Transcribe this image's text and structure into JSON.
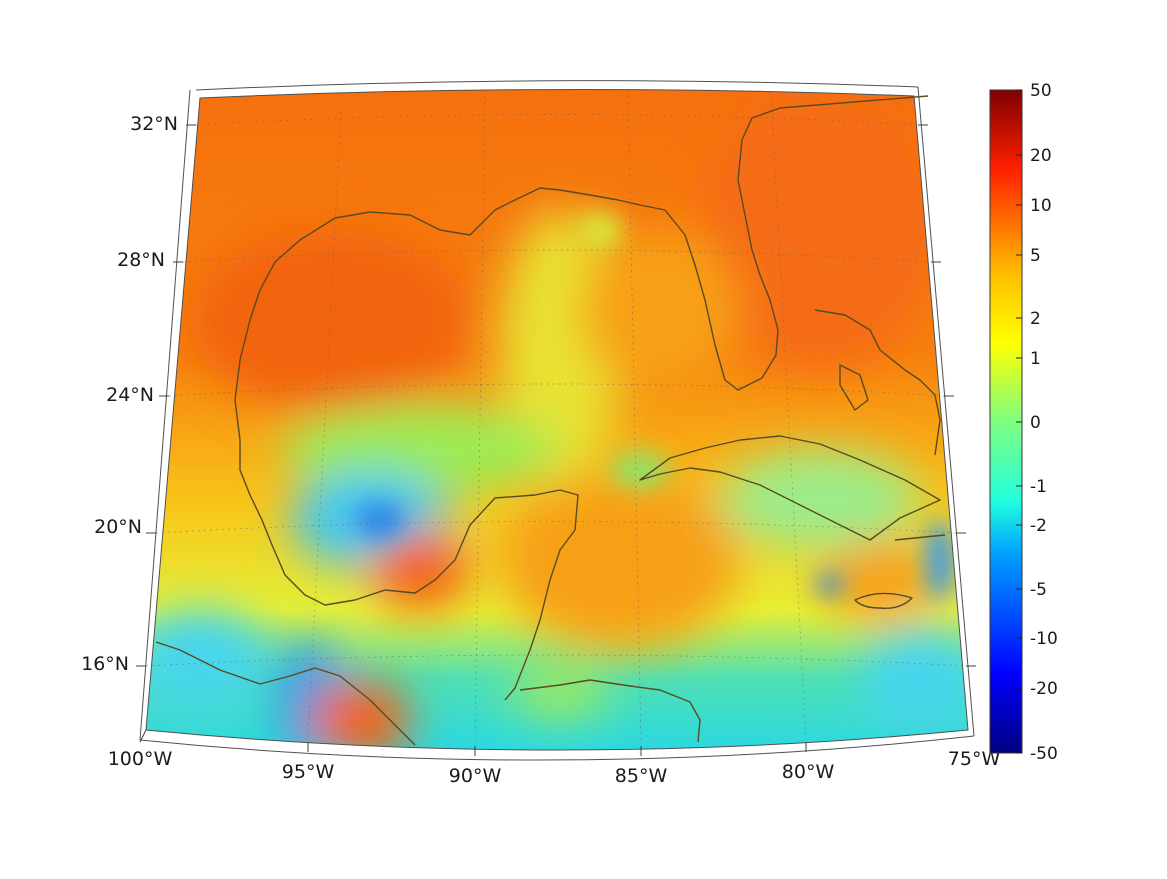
{
  "map": {
    "region": "Gulf of Mexico and Caribbean",
    "projection": "conic",
    "lon_range": [
      -100,
      -75
    ],
    "lat_range": [
      14,
      33
    ],
    "lon_ticks": [
      "100°W",
      "95°W",
      "90°W",
      "85°W",
      "80°W",
      "75°W"
    ],
    "lat_ticks": [
      "16°N",
      "20°N",
      "24°N",
      "28°N",
      "32°N"
    ],
    "coastline_color": "#5a4a22",
    "gridlines": true
  },
  "colorbar": {
    "colormap": "jet",
    "scale": "symmetric-log",
    "ticks": [
      "50",
      "20",
      "10",
      "5",
      "2",
      "1",
      "0",
      "-1",
      "-2",
      "-5",
      "-10",
      "-20",
      "-50"
    ]
  }
}
